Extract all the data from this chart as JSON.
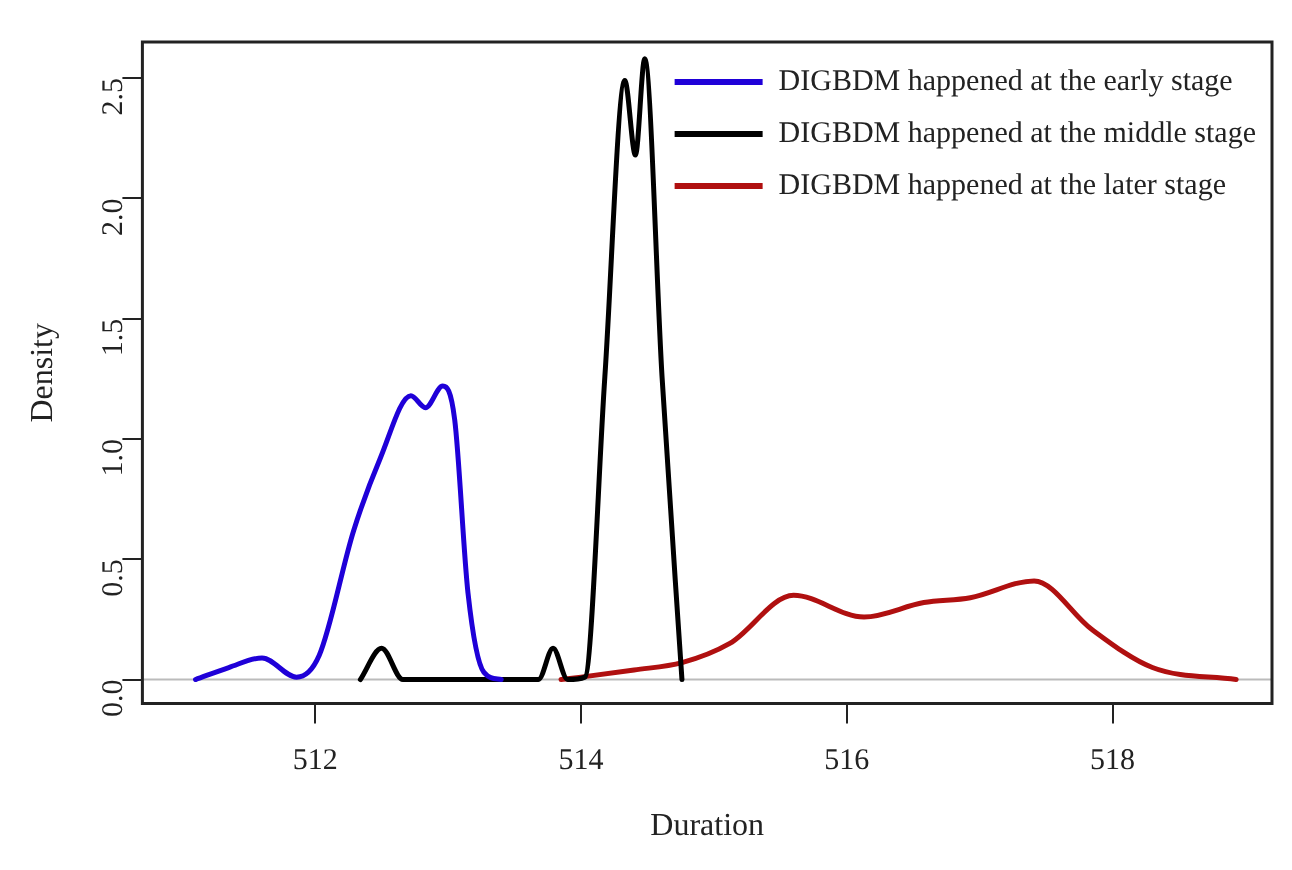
{
  "chart_data": {
    "type": "line",
    "xlabel": "Duration",
    "ylabel": "Density",
    "xlim": [
      510.7,
      519.2
    ],
    "xticks": [
      512,
      514,
      516,
      518
    ],
    "ylim": [
      -0.1,
      2.65
    ],
    "yticks": [
      {
        "value": 0,
        "label": "0.0"
      },
      {
        "value": 0.5,
        "label": "0.5"
      },
      {
        "value": 1,
        "label": "1.0"
      },
      {
        "value": 1.5,
        "label": "1.5"
      },
      {
        "value": 2,
        "label": "2.0"
      },
      {
        "value": 2.5,
        "label": "2.5"
      }
    ],
    "grid": false,
    "legend": "top right",
    "marker": "none",
    "line_style": "solid",
    "ref_lines": [
      {
        "axis": "y",
        "value": 0,
        "label": null,
        "color": "#bbbbbb"
      }
    ],
    "series": [
      {
        "name": "DIGBDM happened at the early stage",
        "color": "#1f00d8",
        "x": [
          511.1,
          511.35,
          511.6,
          511.86,
          512.03,
          512.29,
          512.49,
          512.72,
          512.83,
          512.96,
          513.05,
          513.15,
          513.27,
          513.4
        ],
        "values": [
          0,
          0.05,
          0.09,
          0.01,
          0.1,
          0.62,
          0.92,
          1.18,
          1.13,
          1.22,
          1.08,
          0.36,
          0.03,
          0
        ]
      },
      {
        "name": "DIGBDM happened at the middle stage",
        "color": "#000000",
        "x": [
          512.34,
          512.5,
          512.66,
          513.68,
          513.79,
          513.9,
          514.03,
          514.18,
          514.33,
          514.41,
          514.48,
          514.61,
          514.76
        ],
        "values": [
          0,
          0.13,
          0,
          0,
          0.13,
          0,
          0.01,
          1.26,
          2.49,
          2.18,
          2.58,
          1.26,
          0
        ]
      },
      {
        "name": "DIGBDM happened at the later stage",
        "color": "#b01010",
        "x": [
          513.85,
          514.0,
          514.4,
          514.76,
          515.12,
          515.6,
          516.13,
          516.58,
          516.93,
          517.41,
          517.84,
          518.3,
          518.93
        ],
        "values": [
          0,
          0.01,
          0.04,
          0.07,
          0.15,
          0.35,
          0.26,
          0.32,
          0.34,
          0.41,
          0.21,
          0.05,
          0
        ]
      }
    ]
  }
}
